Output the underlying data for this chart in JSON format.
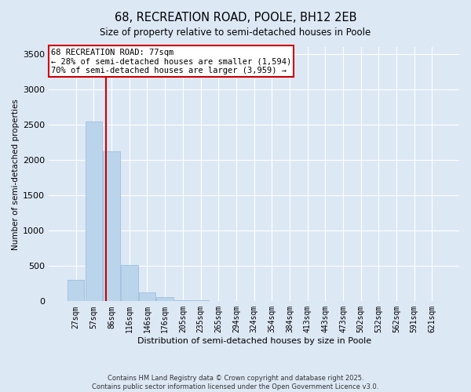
{
  "title1": "68, RECREATION ROAD, POOLE, BH12 2EB",
  "title2": "Size of property relative to semi-detached houses in Poole",
  "xlabel": "Distribution of semi-detached houses by size in Poole",
  "ylabel": "Number of semi-detached properties",
  "bins": [
    "27sqm",
    "57sqm",
    "86sqm",
    "116sqm",
    "146sqm",
    "176sqm",
    "205sqm",
    "235sqm",
    "265sqm",
    "294sqm",
    "324sqm",
    "354sqm",
    "384sqm",
    "413sqm",
    "443sqm",
    "473sqm",
    "502sqm",
    "532sqm",
    "562sqm",
    "591sqm",
    "621sqm"
  ],
  "values": [
    300,
    2550,
    2120,
    510,
    130,
    60,
    20,
    10,
    5,
    3,
    2,
    1,
    1,
    0,
    0,
    0,
    0,
    0,
    0,
    0,
    0
  ],
  "bar_color": "#bad4ec",
  "bar_edge_color": "#95b8d8",
  "annotation_text_line1": "68 RECREATION ROAD: 77sqm",
  "annotation_text_line2": "← 28% of semi-detached houses are smaller (1,594)",
  "annotation_text_line3": "70% of semi-detached houses are larger (3,959) →",
  "ylim": [
    0,
    3600
  ],
  "yticks": [
    0,
    500,
    1000,
    1500,
    2000,
    2500,
    3000,
    3500
  ],
  "vline_color": "#cc0000",
  "box_edge_color": "#cc0000",
  "footer1": "Contains HM Land Registry data © Crown copyright and database right 2025.",
  "footer2": "Contains public sector information licensed under the Open Government Licence v3.0.",
  "bg_color": "#dde8f5",
  "plot_bg_color": "#dde8f5",
  "grid_color": "#ffffff",
  "title1_fontsize": 10.5,
  "title2_fontsize": 8.5,
  "xlabel_fontsize": 8,
  "ylabel_fontsize": 7.5,
  "tick_fontsize": 7,
  "annot_fontsize": 7.5,
  "footer_fontsize": 6
}
